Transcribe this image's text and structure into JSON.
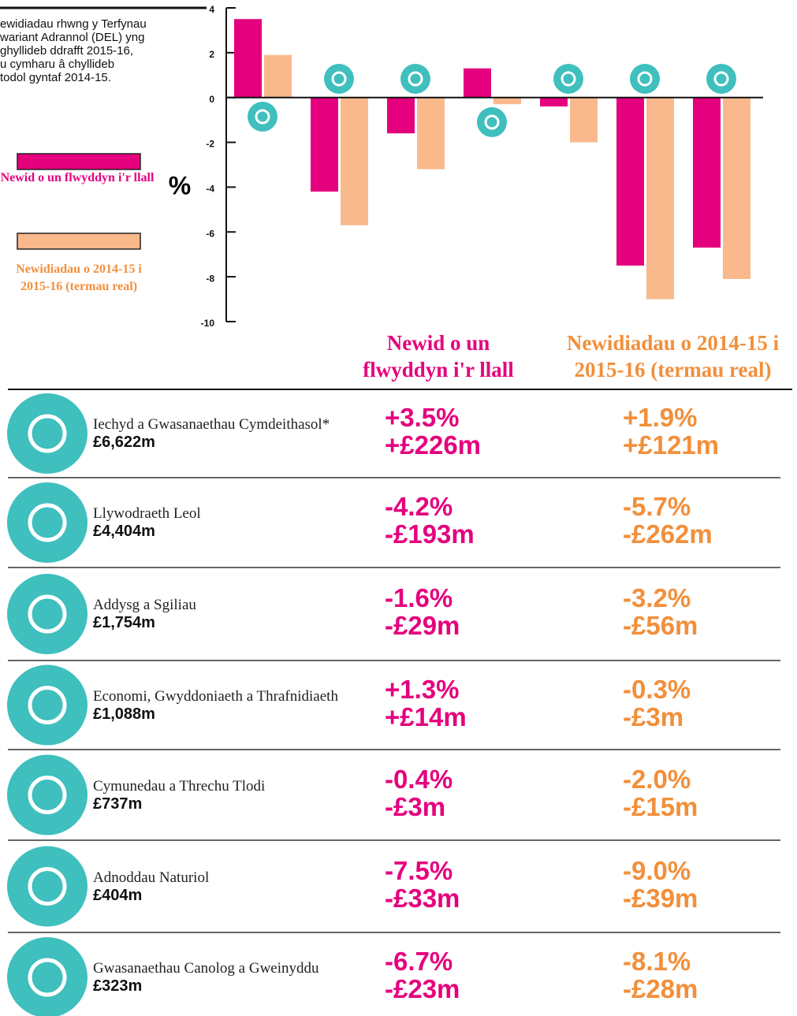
{
  "chart_data": {
    "type": "bar",
    "description": [
      "ewidiadau rhwng y Terfynau",
      "wariant Adrannol (DEL) yng",
      "ghyllideb ddrafft 2015-16,",
      "u cymharu â chyllideb",
      "todol gyntaf 2014-15."
    ],
    "ylabel": "%",
    "categories": [
      null,
      null,
      null,
      null,
      null,
      null,
      null
    ],
    "series": [
      {
        "name": "Newid o un flwyddyn i'r llall",
        "color": "#e5007d",
        "values": [
          3.5,
          -4.2,
          -1.6,
          1.3,
          -0.4,
          -7.5,
          -6.7
        ]
      },
      {
        "name": "Newidiadau o 2014-15 i 2015-16 (termau real)",
        "color": "#f9b98c",
        "values": [
          1.9,
          -5.7,
          -3.2,
          -0.3,
          -2.0,
          -9.0,
          -8.1
        ]
      }
    ],
    "ylim": [
      -10,
      4
    ],
    "yticks": [
      4,
      2,
      0,
      -2,
      -4,
      -6,
      -8,
      -10
    ]
  },
  "table": {
    "headers": [
      "Newid o un flwyddyn i'r llall",
      "Newidiadau o 2014-15 i 2015-16 (termau real)"
    ],
    "rows": [
      [
        "Iechyd a Gwasanaethau Cymdeithasol*",
        "£6,622m",
        "+3.5%",
        "+£226m",
        "+1.9%",
        "+£121m"
      ],
      [
        "Llywodraeth Leol",
        "£4,404m",
        "-4.2%",
        "-£193m",
        "-5.7%",
        "-£262m"
      ],
      [
        "Addysg a Sgiliau",
        "£1,754m",
        "-1.6%",
        "-£29m",
        "-3.2%",
        "-£56m"
      ],
      [
        "Economi, Gwyddoniaeth a Thrafnidiaeth",
        "£1,088m",
        "+1.3%",
        "+£14m",
        "-0.3%",
        "-£3m"
      ],
      [
        "Cymunedau a Threchu Tlodi",
        "£737m",
        "-0.4%",
        "-£3m",
        "-2.0%",
        "-£15m"
      ],
      [
        "Adnoddau Naturiol",
        "£404m",
        "-7.5%",
        "-£33m",
        "-9.0%",
        "-£39m"
      ],
      [
        "Gwasanaethau Canolog a Gweinyddu",
        "£323m",
        "-6.7%",
        "-£23m",
        "-8.1%",
        "-£28m"
      ]
    ]
  }
}
